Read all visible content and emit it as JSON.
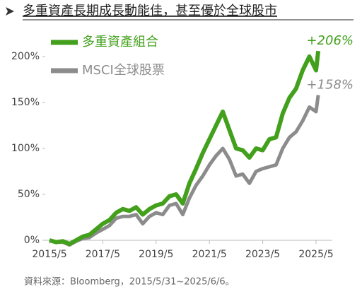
{
  "chart_data": {
    "type": "line",
    "title": "多重資產長期成長動能佳，甚至優於全球股市",
    "note": "資料來源：Bloomberg，2015/5/31~2025/6/6。",
    "x": [
      "2015/5",
      "2015/8",
      "2015/11",
      "2016/2",
      "2016/5",
      "2016/8",
      "2016/11",
      "2017/2",
      "2017/5",
      "2017/8",
      "2017/11",
      "2018/2",
      "2018/5",
      "2018/8",
      "2018/11",
      "2019/2",
      "2019/5",
      "2019/8",
      "2019/11",
      "2020/2",
      "2020/5",
      "2020/8",
      "2020/11",
      "2021/2",
      "2021/5",
      "2021/8",
      "2021/11",
      "2022/2",
      "2022/5",
      "2022/8",
      "2022/11",
      "2023/2",
      "2023/5",
      "2023/8",
      "2023/11",
      "2024/2",
      "2024/5",
      "2024/8",
      "2024/11",
      "2025/2",
      "2025/5",
      "2025/6"
    ],
    "series": [
      {
        "name": "多重資產組合",
        "color": "#43a01c",
        "values": [
          0,
          -2,
          -1,
          -4,
          0,
          4,
          6,
          12,
          18,
          22,
          30,
          34,
          32,
          36,
          28,
          34,
          38,
          40,
          48,
          50,
          40,
          62,
          78,
          95,
          110,
          125,
          140,
          120,
          100,
          98,
          90,
          100,
          98,
          110,
          112,
          138,
          155,
          165,
          185,
          200,
          185,
          206
        ],
        "value_labels": [
          null,
          null,
          null,
          null,
          null,
          null,
          null,
          null,
          null,
          null,
          null,
          null,
          null,
          null,
          null,
          null,
          null,
          null,
          null,
          null,
          null,
          null,
          null,
          null,
          null,
          null,
          null,
          null,
          null,
          null,
          null,
          null,
          null,
          null,
          null,
          null,
          null,
          null,
          null,
          null,
          null,
          "+206%"
        ]
      },
      {
        "name": "MSCI全球股票",
        "color": "#8c8c8c",
        "values": [
          0,
          -2,
          -2,
          -5,
          -1,
          2,
          3,
          8,
          12,
          16,
          24,
          26,
          26,
          28,
          18,
          26,
          30,
          28,
          38,
          40,
          28,
          46,
          60,
          70,
          82,
          92,
          100,
          88,
          70,
          72,
          62,
          75,
          78,
          80,
          82,
          100,
          112,
          118,
          130,
          145,
          140,
          158
        ],
        "value_labels": [
          null,
          null,
          null,
          null,
          null,
          null,
          null,
          null,
          null,
          null,
          null,
          null,
          null,
          null,
          null,
          null,
          null,
          null,
          null,
          null,
          null,
          null,
          null,
          null,
          null,
          null,
          null,
          null,
          null,
          null,
          null,
          null,
          null,
          null,
          null,
          null,
          null,
          null,
          null,
          null,
          null,
          "+158%"
        ]
      }
    ],
    "xlim": [
      "2015/5",
      "2025/5"
    ],
    "xticks": [
      "2015/5",
      "2017/5",
      "2019/5",
      "2021/5",
      "2023/5",
      "2025/5"
    ],
    "ylim": [
      0,
      200
    ],
    "yticks": [
      {
        "value": 0,
        "label": "0%"
      },
      {
        "value": 50,
        "label": "50%"
      },
      {
        "value": 100,
        "label": "100%"
      },
      {
        "value": 150,
        "label": "150%"
      },
      {
        "value": 200,
        "label": "200%"
      }
    ],
    "grid": false
  }
}
